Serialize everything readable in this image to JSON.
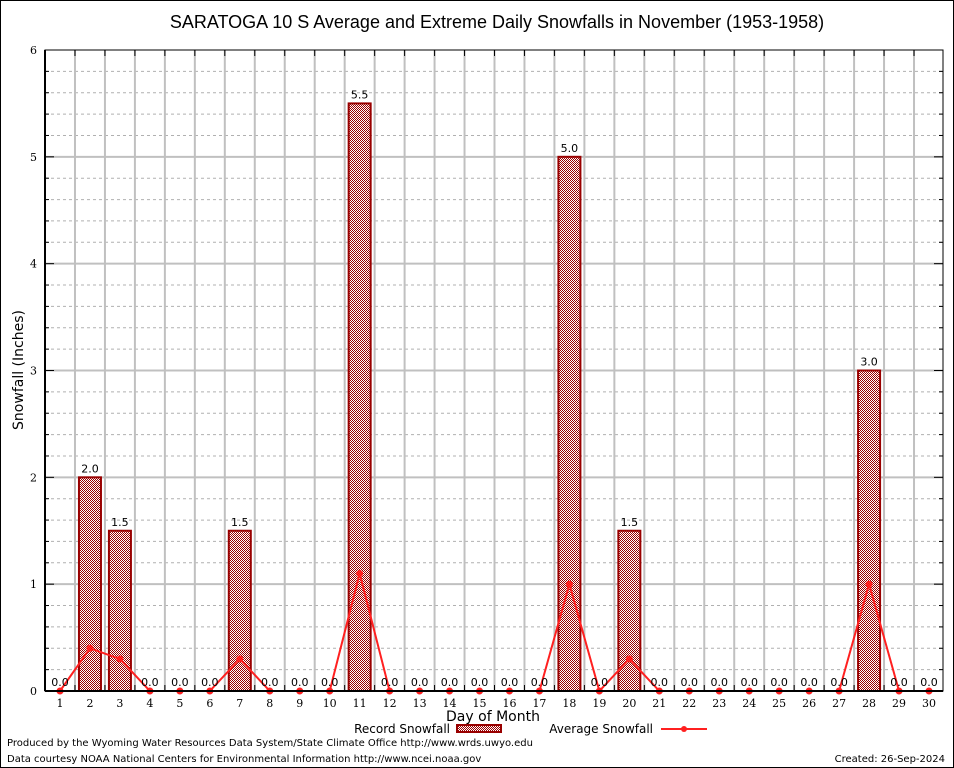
{
  "chart_data": {
    "type": "bar",
    "title": "SARATOGA 10 S Average and Extreme Daily Snowfalls in November (1953-1958)",
    "xlabel": "Day of Month",
    "ylabel": "Snowfall (Inches)",
    "ylim": [
      0,
      6
    ],
    "yticks": [
      "0",
      "1",
      "2",
      "3",
      "4",
      "5",
      "6"
    ],
    "grid": true,
    "categories": [
      "1",
      "2",
      "3",
      "4",
      "5",
      "6",
      "7",
      "8",
      "9",
      "10",
      "11",
      "12",
      "13",
      "14",
      "15",
      "16",
      "17",
      "18",
      "19",
      "20",
      "21",
      "22",
      "23",
      "24",
      "25",
      "26",
      "27",
      "28",
      "29",
      "30"
    ],
    "series": [
      {
        "name": "Record Snowfall",
        "type": "bar",
        "color": "#990000",
        "values": [
          0.0,
          2.0,
          1.5,
          0.0,
          0.0,
          0.0,
          1.5,
          0.0,
          0.0,
          0.0,
          5.5,
          0.0,
          0.0,
          0.0,
          0.0,
          0.0,
          0.0,
          5.0,
          0.0,
          1.5,
          0.0,
          0.0,
          0.0,
          0.0,
          0.0,
          0.0,
          0.0,
          3.0,
          0.0,
          0.0
        ],
        "labels": [
          "0.0",
          "2.0",
          "1.5",
          "0.0",
          "0.0",
          "0.0",
          "1.5",
          "0.0",
          "0.0",
          "0.0",
          "5.5",
          "0.0",
          "0.0",
          "0.0",
          "0.0",
          "0.0",
          "0.0",
          "5.0",
          "0.0",
          "1.5",
          "0.0",
          "0.0",
          "0.0",
          "0.0",
          "0.0",
          "0.0",
          "0.0",
          "3.0",
          "0.0",
          "0.0"
        ]
      },
      {
        "name": "Average Snowfall",
        "type": "line",
        "color": "#ff2020",
        "values": [
          0.0,
          0.4,
          0.3,
          0.0,
          0.0,
          0.0,
          0.3,
          0.0,
          0.0,
          0.0,
          1.1,
          0.0,
          0.0,
          0.0,
          0.0,
          0.0,
          0.0,
          1.0,
          0.0,
          0.3,
          0.0,
          0.0,
          0.0,
          0.0,
          0.0,
          0.0,
          0.0,
          1.0,
          0.0,
          0.0
        ]
      }
    ],
    "legend": "bottom-center"
  },
  "footer": {
    "produced_by": "Produced by the Wyoming Water Resources Data System/State Climate Office http://www.wrds.uwyo.edu",
    "data_courtesy": "Data courtesy NOAA National Centers for Environmental Information http://www.ncei.noaa.gov",
    "created": "Created: 26-Sep-2024"
  }
}
